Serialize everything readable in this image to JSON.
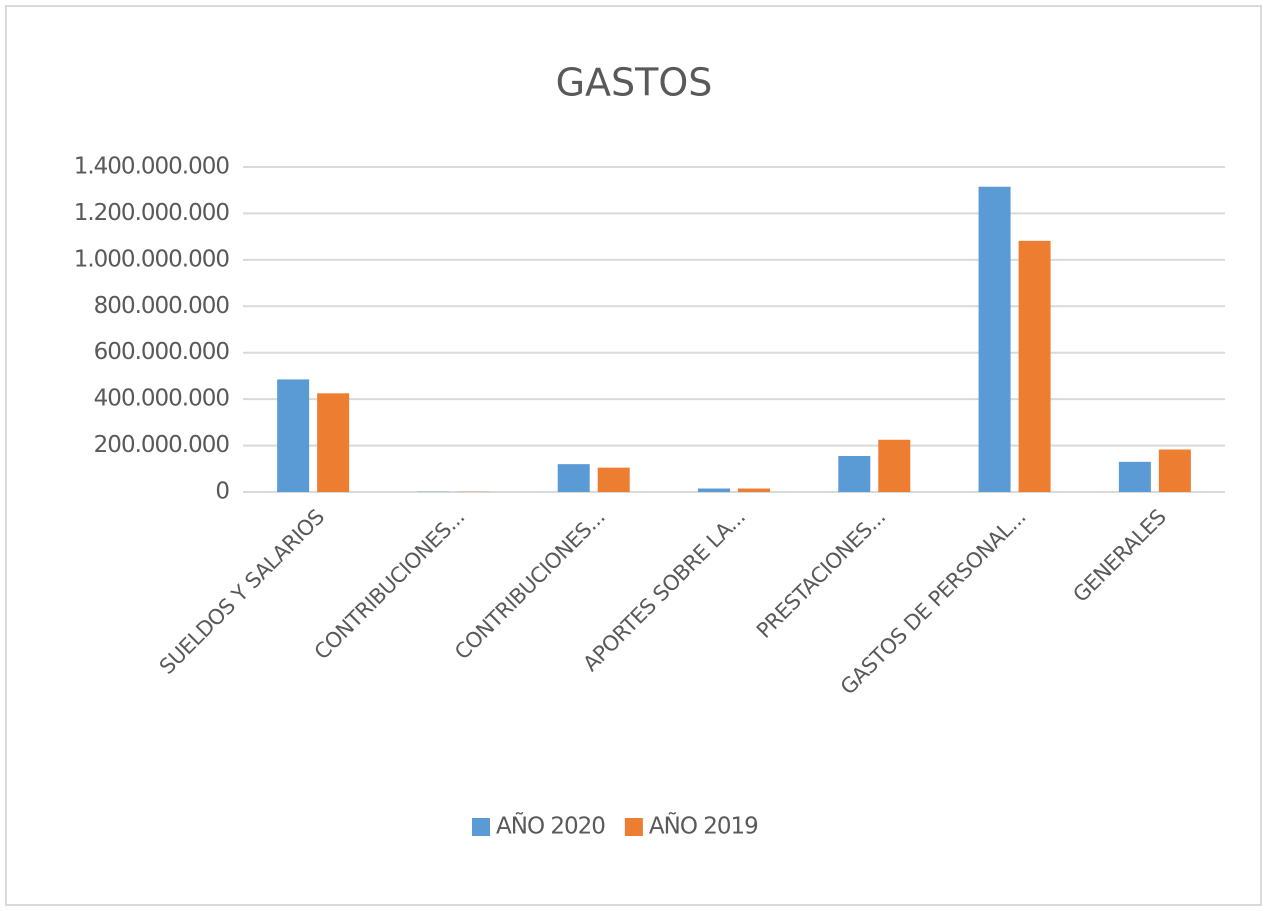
{
  "chart_data": {
    "type": "bar",
    "title": "GASTOS",
    "categories": [
      "SUELDOS Y SALARIOS",
      "CONTRIBUCIONES...",
      "CONTRIBUCIONES...",
      "APORTES SOBRE LA...",
      "PRESTACIONES...",
      "GASTOS DE PERSONAL...",
      "GENERALES"
    ],
    "series": [
      {
        "name": "AÑO 2020",
        "color": "#5b9bd5",
        "values": [
          485000000,
          1000000,
          120000000,
          15000000,
          155000000,
          1315000000,
          130000000
        ]
      },
      {
        "name": "AÑO 2019",
        "color": "#ed7d31",
        "values": [
          425000000,
          1000000,
          105000000,
          15000000,
          225000000,
          1082000000,
          183000000
        ]
      }
    ],
    "ylim": [
      0,
      1400000000
    ],
    "yticks": [
      0,
      {
        "value": 200000000,
        "label": "200.000.000"
      },
      {
        "value": 400000000,
        "label": "400.000.000"
      },
      {
        "value": 600000000,
        "label": "600.000.000"
      },
      {
        "value": 800000000,
        "label": "800.000.000"
      },
      {
        "value": 1000000000,
        "label": "1.000.000.000"
      },
      {
        "value": 1200000000,
        "label": "1.200.000.000"
      },
      {
        "value": 1400000000,
        "label": "1.400.000.000"
      }
    ],
    "grid": true,
    "legend": "bottom"
  }
}
